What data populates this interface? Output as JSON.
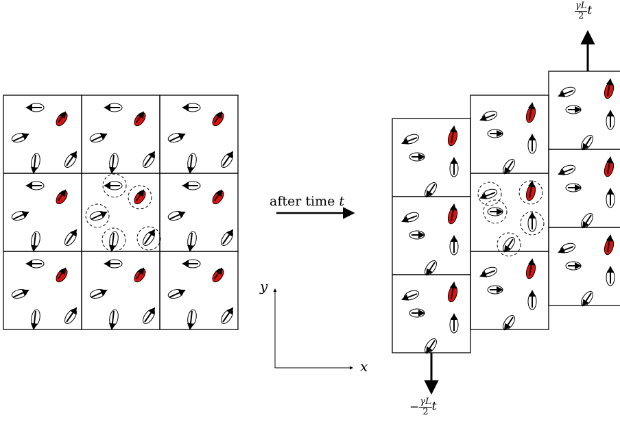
{
  "labels": {
    "transform": "after time",
    "transform_var": "t",
    "axis_x": "x",
    "axis_y": "y",
    "shift_top_num": "γL",
    "shift_top_den": "2",
    "shift_top_var": "t",
    "shift_bottom_sign": "−",
    "shift_bottom_num": "γL",
    "shift_bottom_den": "2",
    "shift_bottom_var": "t"
  },
  "colors": {
    "line": "#000000",
    "highlight_particle": "#e01010",
    "background": "#ffffff"
  },
  "lattice": {
    "left_grid": {
      "rows": 3,
      "cols": 3,
      "description_of_cells": "periodic image cells, central cell circled"
    },
    "right_grid": {
      "columns": 3,
      "rows_per_column": 3,
      "column_shear": [
        "down",
        "none",
        "up"
      ]
    }
  }
}
